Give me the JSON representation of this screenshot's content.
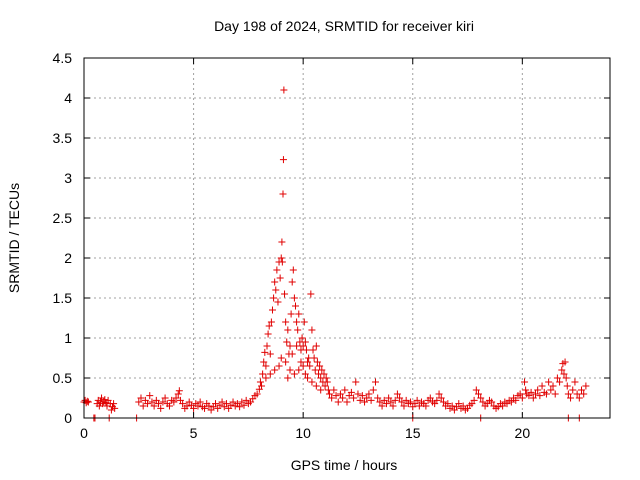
{
  "chart_data": {
    "type": "scatter",
    "title": "Day 198 of 2024, SRMTID for receiver kiri",
    "xlabel": "GPS time / hours",
    "ylabel": "SRMTID / TECUs",
    "xlim": [
      0,
      24
    ],
    "ylim": [
      0,
      4.5
    ],
    "x_ticks": [
      0,
      5,
      10,
      15,
      20
    ],
    "x_tick_labels": [
      "0",
      "5",
      "10",
      "15",
      "20"
    ],
    "y_ticks": [
      0,
      0.5,
      1,
      1.5,
      2,
      2.5,
      3,
      3.5,
      4,
      4.5
    ],
    "y_tick_labels": [
      "0",
      "0.5",
      "1",
      "1.5",
      "2",
      "2.5",
      "3",
      "3.5",
      "4",
      "4.5"
    ],
    "grid": true,
    "series": [
      {
        "name": "SRMTID",
        "marker": "+",
        "color": "#e00000",
        "points": [
          [
            0.0,
            0.2
          ],
          [
            0.05,
            0.22
          ],
          [
            0.1,
            0.19
          ],
          [
            0.15,
            0.21
          ],
          [
            0.2,
            0.2
          ],
          [
            0.45,
            0.0
          ],
          [
            0.5,
            0.0
          ],
          [
            0.6,
            0.18
          ],
          [
            0.65,
            0.22
          ],
          [
            0.7,
            0.15
          ],
          [
            0.75,
            0.2
          ],
          [
            0.8,
            0.25
          ],
          [
            0.85,
            0.18
          ],
          [
            0.9,
            0.2
          ],
          [
            0.95,
            0.23
          ],
          [
            1.0,
            0.19
          ],
          [
            1.05,
            0.15
          ],
          [
            1.1,
            0.22
          ],
          [
            1.2,
            0.18
          ],
          [
            1.25,
            0.1
          ],
          [
            1.3,
            0.14
          ],
          [
            1.35,
            0.18
          ],
          [
            1.4,
            0.12
          ],
          [
            1.15,
            0.0
          ],
          [
            2.4,
            0.0
          ],
          [
            2.5,
            0.2
          ],
          [
            2.6,
            0.25
          ],
          [
            2.7,
            0.15
          ],
          [
            2.8,
            0.22
          ],
          [
            2.9,
            0.18
          ],
          [
            3.0,
            0.28
          ],
          [
            3.1,
            0.2
          ],
          [
            3.2,
            0.15
          ],
          [
            3.3,
            0.22
          ],
          [
            3.4,
            0.18
          ],
          [
            3.5,
            0.12
          ],
          [
            3.6,
            0.2
          ],
          [
            3.7,
            0.25
          ],
          [
            3.8,
            0.18
          ],
          [
            3.9,
            0.15
          ],
          [
            4.0,
            0.22
          ],
          [
            4.1,
            0.2
          ],
          [
            4.2,
            0.25
          ],
          [
            4.3,
            0.3
          ],
          [
            4.35,
            0.34
          ],
          [
            4.4,
            0.22
          ],
          [
            4.5,
            0.18
          ],
          [
            4.6,
            0.12
          ],
          [
            4.7,
            0.15
          ],
          [
            4.8,
            0.2
          ],
          [
            4.9,
            0.16
          ],
          [
            5.0,
            0.12
          ],
          [
            5.1,
            0.18
          ],
          [
            5.2,
            0.15
          ],
          [
            5.3,
            0.2
          ],
          [
            5.4,
            0.14
          ],
          [
            5.5,
            0.12
          ],
          [
            5.6,
            0.18
          ],
          [
            5.7,
            0.15
          ],
          [
            5.8,
            0.1
          ],
          [
            5.9,
            0.14
          ],
          [
            6.0,
            0.18
          ],
          [
            6.1,
            0.12
          ],
          [
            6.2,
            0.16
          ],
          [
            6.3,
            0.2
          ],
          [
            6.4,
            0.14
          ],
          [
            6.5,
            0.18
          ],
          [
            6.6,
            0.12
          ],
          [
            6.7,
            0.16
          ],
          [
            6.8,
            0.2
          ],
          [
            6.9,
            0.15
          ],
          [
            7.0,
            0.18
          ],
          [
            7.1,
            0.14
          ],
          [
            7.2,
            0.2
          ],
          [
            7.3,
            0.16
          ],
          [
            7.4,
            0.22
          ],
          [
            7.5,
            0.18
          ],
          [
            7.6,
            0.2
          ],
          [
            7.7,
            0.24
          ],
          [
            7.8,
            0.28
          ],
          [
            7.9,
            0.3
          ],
          [
            8.0,
            0.36
          ],
          [
            8.05,
            0.45
          ],
          [
            8.1,
            0.4
          ],
          [
            8.15,
            0.55
          ],
          [
            8.2,
            0.7
          ],
          [
            8.25,
            0.82
          ],
          [
            8.3,
            0.65
          ],
          [
            8.35,
            0.9
          ],
          [
            8.4,
            1.05
          ],
          [
            8.45,
            1.15
          ],
          [
            8.5,
            0.8
          ],
          [
            8.55,
            1.2
          ],
          [
            8.6,
            1.35
          ],
          [
            8.65,
            1.5
          ],
          [
            8.7,
            1.7
          ],
          [
            8.75,
            1.6
          ],
          [
            8.8,
            1.85
          ],
          [
            8.85,
            1.45
          ],
          [
            8.9,
            1.95
          ],
          [
            8.95,
            1.75
          ],
          [
            9.0,
            2.0
          ],
          [
            9.03,
            2.2
          ],
          [
            9.05,
            1.95
          ],
          [
            9.08,
            2.8
          ],
          [
            9.1,
            3.23
          ],
          [
            9.12,
            4.1
          ],
          [
            9.15,
            1.55
          ],
          [
            9.2,
            1.2
          ],
          [
            9.25,
            0.95
          ],
          [
            9.3,
            1.1
          ],
          [
            9.35,
            0.8
          ],
          [
            9.4,
            0.9
          ],
          [
            9.45,
            1.3
          ],
          [
            9.5,
            1.7
          ],
          [
            9.55,
            1.85
          ],
          [
            9.6,
            1.5
          ],
          [
            9.65,
            1.4
          ],
          [
            9.7,
            1.2
          ],
          [
            9.75,
            1.1
          ],
          [
            9.8,
            1.3
          ],
          [
            9.85,
            0.95
          ],
          [
            9.9,
            0.85
          ],
          [
            9.95,
            1.0
          ],
          [
            10.0,
            0.9
          ],
          [
            10.05,
            1.2
          ],
          [
            10.1,
            0.95
          ],
          [
            10.15,
            0.85
          ],
          [
            10.2,
            0.7
          ],
          [
            10.25,
            0.75
          ],
          [
            10.3,
            0.65
          ],
          [
            10.35,
            1.55
          ],
          [
            10.4,
            1.1
          ],
          [
            10.45,
            0.85
          ],
          [
            10.5,
            0.75
          ],
          [
            10.55,
            0.6
          ],
          [
            10.6,
            0.9
          ],
          [
            10.65,
            0.7
          ],
          [
            10.7,
            0.55
          ],
          [
            10.75,
            0.65
          ],
          [
            10.8,
            0.5
          ],
          [
            10.85,
            0.6
          ],
          [
            10.9,
            0.45
          ],
          [
            10.95,
            0.55
          ],
          [
            11.0,
            0.4
          ],
          [
            11.05,
            0.5
          ],
          [
            11.1,
            0.45
          ],
          [
            11.15,
            0.35
          ],
          [
            8.3,
            0.5
          ],
          [
            8.5,
            0.55
          ],
          [
            8.7,
            0.6
          ],
          [
            8.9,
            0.65
          ],
          [
            9.0,
            0.75
          ],
          [
            9.2,
            0.7
          ],
          [
            9.4,
            0.6
          ],
          [
            9.6,
            0.55
          ],
          [
            9.8,
            0.6
          ],
          [
            10.0,
            0.65
          ],
          [
            10.2,
            0.5
          ],
          [
            10.4,
            0.45
          ],
          [
            10.6,
            0.4
          ],
          [
            10.8,
            0.35
          ],
          [
            9.3,
            0.5
          ],
          [
            9.5,
            0.8
          ],
          [
            9.7,
            0.9
          ],
          [
            9.9,
            0.7
          ],
          [
            10.1,
            0.55
          ],
          [
            11.2,
            0.3
          ],
          [
            11.3,
            0.25
          ],
          [
            11.4,
            0.35
          ],
          [
            11.5,
            0.28
          ],
          [
            11.6,
            0.2
          ],
          [
            11.7,
            0.3
          ],
          [
            11.8,
            0.25
          ],
          [
            11.9,
            0.35
          ],
          [
            12.0,
            0.2
          ],
          [
            12.1,
            0.28
          ],
          [
            12.2,
            0.32
          ],
          [
            12.3,
            0.25
          ],
          [
            12.4,
            0.45
          ],
          [
            12.5,
            0.3
          ],
          [
            12.6,
            0.22
          ],
          [
            12.7,
            0.28
          ],
          [
            12.8,
            0.2
          ],
          [
            12.9,
            0.25
          ],
          [
            13.0,
            0.3
          ],
          [
            13.1,
            0.22
          ],
          [
            13.2,
            0.35
          ],
          [
            13.3,
            0.45
          ],
          [
            13.4,
            0.25
          ],
          [
            13.5,
            0.2
          ],
          [
            13.6,
            0.15
          ],
          [
            13.7,
            0.22
          ],
          [
            13.8,
            0.18
          ],
          [
            13.9,
            0.25
          ],
          [
            14.0,
            0.2
          ],
          [
            14.1,
            0.15
          ],
          [
            14.2,
            0.22
          ],
          [
            14.3,
            0.3
          ],
          [
            14.4,
            0.25
          ],
          [
            14.5,
            0.2
          ],
          [
            14.6,
            0.15
          ],
          [
            14.7,
            0.22
          ],
          [
            14.8,
            0.18
          ],
          [
            14.9,
            0.2
          ],
          [
            15.0,
            0.14
          ],
          [
            15.1,
            0.18
          ],
          [
            15.2,
            0.22
          ],
          [
            15.3,
            0.15
          ],
          [
            15.4,
            0.2
          ],
          [
            15.5,
            0.18
          ],
          [
            15.6,
            0.15
          ],
          [
            15.7,
            0.22
          ],
          [
            15.8,
            0.25
          ],
          [
            15.9,
            0.2
          ],
          [
            16.0,
            0.18
          ],
          [
            16.1,
            0.22
          ],
          [
            16.2,
            0.3
          ],
          [
            16.3,
            0.25
          ],
          [
            16.4,
            0.2
          ],
          [
            16.5,
            0.15
          ],
          [
            16.6,
            0.18
          ],
          [
            16.7,
            0.12
          ],
          [
            16.8,
            0.15
          ],
          [
            16.9,
            0.1
          ],
          [
            17.0,
            0.14
          ],
          [
            17.1,
            0.18
          ],
          [
            17.2,
            0.12
          ],
          [
            17.3,
            0.15
          ],
          [
            17.4,
            0.1
          ],
          [
            17.5,
            0.12
          ],
          [
            17.6,
            0.16
          ],
          [
            17.7,
            0.18
          ],
          [
            17.8,
            0.22
          ],
          [
            17.9,
            0.35
          ],
          [
            18.0,
            0.3
          ],
          [
            18.1,
            0.25
          ],
          [
            18.2,
            0.2
          ],
          [
            18.3,
            0.15
          ],
          [
            18.4,
            0.18
          ],
          [
            18.5,
            0.22
          ],
          [
            18.6,
            0.2
          ],
          [
            18.7,
            0.15
          ],
          [
            18.8,
            0.12
          ],
          [
            18.9,
            0.14
          ],
          [
            19.0,
            0.18
          ],
          [
            19.1,
            0.15
          ],
          [
            19.2,
            0.2
          ],
          [
            19.3,
            0.18
          ],
          [
            19.4,
            0.22
          ],
          [
            19.5,
            0.2
          ],
          [
            19.6,
            0.25
          ],
          [
            19.7,
            0.22
          ],
          [
            19.8,
            0.28
          ],
          [
            19.9,
            0.3
          ],
          [
            20.0,
            0.25
          ],
          [
            20.1,
            0.45
          ],
          [
            20.15,
            0.35
          ],
          [
            20.2,
            0.3
          ],
          [
            20.3,
            0.28
          ],
          [
            20.4,
            0.32
          ],
          [
            20.5,
            0.25
          ],
          [
            20.6,
            0.3
          ],
          [
            20.7,
            0.35
          ],
          [
            20.8,
            0.28
          ],
          [
            20.9,
            0.4
          ],
          [
            21.0,
            0.32
          ],
          [
            21.1,
            0.3
          ],
          [
            21.2,
            0.45
          ],
          [
            21.3,
            0.35
          ],
          [
            21.4,
            0.4
          ],
          [
            21.5,
            0.3
          ],
          [
            21.6,
            0.5
          ],
          [
            21.7,
            0.45
          ],
          [
            21.8,
            0.6
          ],
          [
            21.85,
            0.68
          ],
          [
            21.9,
            0.55
          ],
          [
            21.95,
            0.7
          ],
          [
            22.0,
            0.5
          ],
          [
            22.05,
            0.4
          ],
          [
            22.1,
            0.3
          ],
          [
            22.2,
            0.25
          ],
          [
            22.3,
            0.35
          ],
          [
            22.4,
            0.45
          ],
          [
            22.5,
            0.3
          ],
          [
            22.6,
            0.25
          ],
          [
            22.7,
            0.35
          ],
          [
            22.8,
            0.3
          ],
          [
            22.9,
            0.4
          ],
          [
            15.0,
            0.0
          ],
          [
            18.1,
            0.0
          ],
          [
            22.1,
            0.0
          ],
          [
            22.6,
            0.0
          ]
        ]
      }
    ]
  }
}
